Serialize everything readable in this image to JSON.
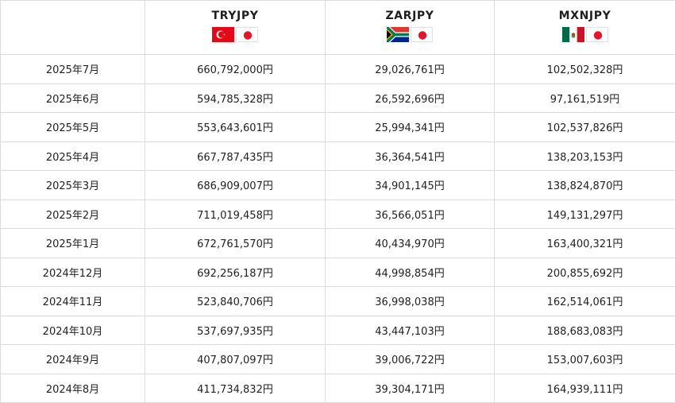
{
  "columns": [
    {
      "pair": "TRYJPY",
      "flags": [
        "turkey-flag-icon",
        "japan-flag-icon"
      ]
    },
    {
      "pair": "ZARJPY",
      "flags": [
        "south-africa-flag-icon",
        "japan-flag-icon"
      ]
    },
    {
      "pair": "MXNJPY",
      "flags": [
        "mexico-flag-icon",
        "japan-flag-icon"
      ]
    }
  ],
  "rows": [
    {
      "month": "2025年7月",
      "values": [
        "660,792,000円",
        "29,026,761円",
        "102,502,328円"
      ]
    },
    {
      "month": "2025年6月",
      "values": [
        "594,785,328円",
        "26,592,696円",
        "97,161,519円"
      ]
    },
    {
      "month": "2025年5月",
      "values": [
        "553,643,601円",
        "25,994,341円",
        "102,537,826円"
      ]
    },
    {
      "month": "2025年4月",
      "values": [
        "667,787,435円",
        "36,364,541円",
        "138,203,153円"
      ]
    },
    {
      "month": "2025年3月",
      "values": [
        "686,909,007円",
        "34,901,145円",
        "138,824,870円"
      ]
    },
    {
      "month": "2025年2月",
      "values": [
        "711,019,458円",
        "36,566,051円",
        "149,131,297円"
      ]
    },
    {
      "month": "2025年1月",
      "values": [
        "672,761,570円",
        "40,434,970円",
        "163,400,321円"
      ]
    },
    {
      "month": "2024年12月",
      "values": [
        "692,256,187円",
        "44,998,854円",
        "200,855,692円"
      ]
    },
    {
      "month": "2024年11月",
      "values": [
        "523,840,706円",
        "36,998,038円",
        "162,514,061円"
      ]
    },
    {
      "month": "2024年10月",
      "values": [
        "537,697,935円",
        "43,447,103円",
        "188,683,083円"
      ]
    },
    {
      "month": "2024年9月",
      "values": [
        "407,807,097円",
        "39,006,722円",
        "153,007,603円"
      ]
    },
    {
      "month": "2024年8月",
      "values": [
        "411,734,832円",
        "39,304,171円",
        "164,939,111円"
      ]
    }
  ]
}
